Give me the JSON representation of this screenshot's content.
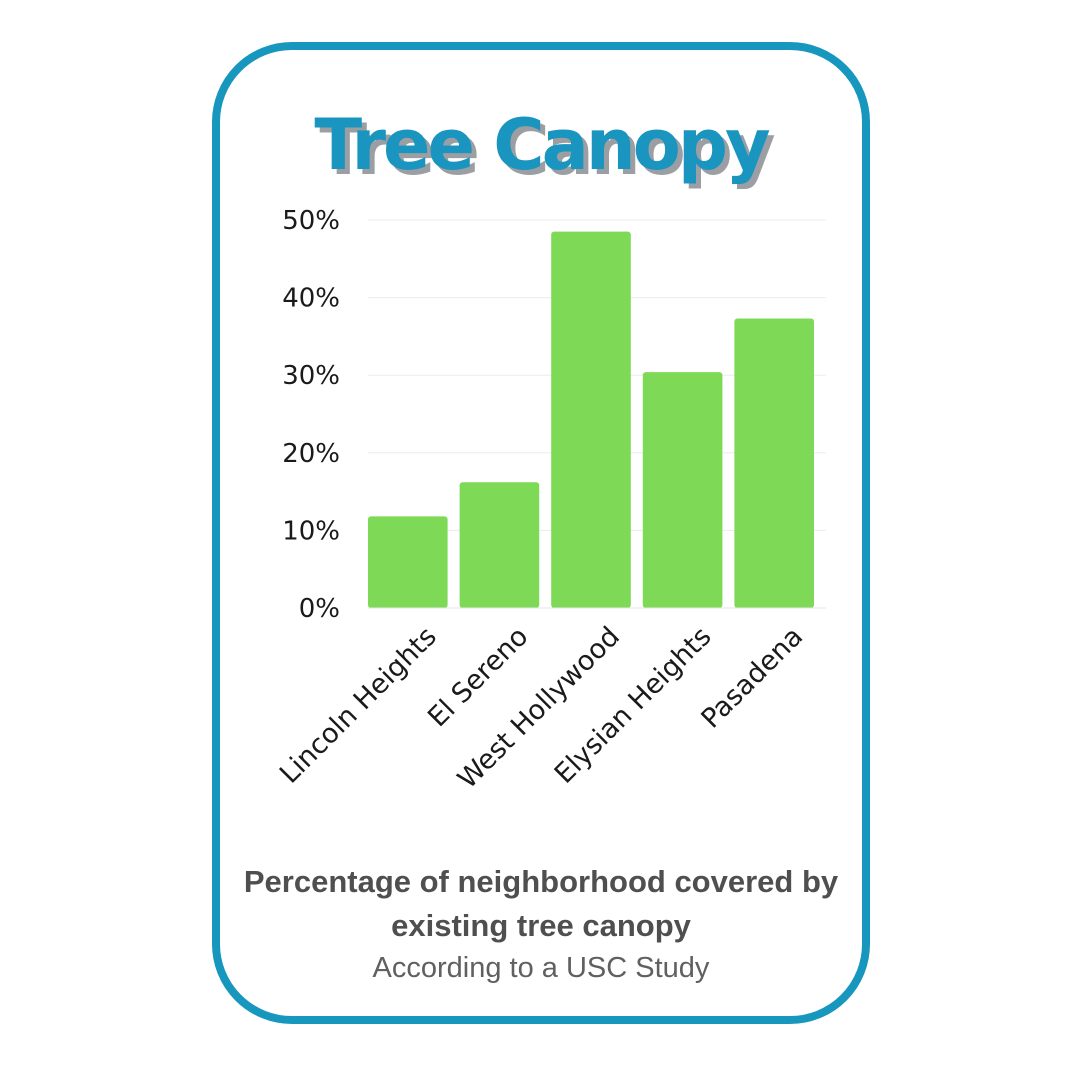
{
  "colors": {
    "frame": "#1797be",
    "title": "#1a95bf",
    "title_shadow": "#9b9ea3",
    "bar": "#7ed957",
    "text": "#4f4f4f"
  },
  "card": {
    "title": "Tree Canopy",
    "caption": "Percentage of neighborhood covered by existing tree canopy",
    "source": "According to a USC Study"
  },
  "chart_data": {
    "type": "bar",
    "categories": [
      "Lincoln Heights",
      "El Sereno",
      "West Hollywood",
      "Elysian Heights",
      "Pasadena"
    ],
    "values": [
      11.8,
      16.2,
      48.5,
      30.4,
      37.3
    ],
    "ylim": [
      0,
      50
    ],
    "yticks": [
      "0%",
      "10%",
      "20%",
      "30%",
      "40%",
      "50%"
    ],
    "grid": true
  }
}
